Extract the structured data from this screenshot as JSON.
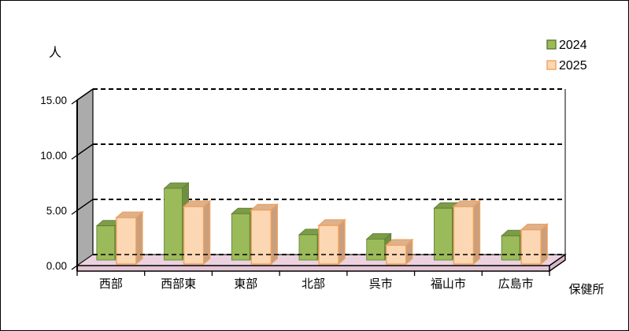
{
  "chart_data": {
    "type": "bar",
    "variant": "3d-clustered-column",
    "title": "",
    "ylabel": "人",
    "xlabel": "保健所",
    "ylim": [
      0,
      15
    ],
    "ytick_labels": [
      "0.00",
      "5.00",
      "10.00",
      "15.00"
    ],
    "ytick_values": [
      0,
      5,
      10,
      15
    ],
    "grid": "dashed-horizontal-on-back-wall",
    "legend_position": "top-right",
    "categories": [
      "西部",
      "西部東",
      "東部",
      "北部",
      "呉市",
      "福山市",
      "広島市"
    ],
    "series": [
      {
        "name": "2024",
        "values": [
          3.1,
          6.5,
          4.2,
          2.3,
          1.9,
          4.7,
          2.2
        ],
        "color": "#9BBA59",
        "top_color": "#7D9C48",
        "side_color": "#708E41",
        "border_color": "#5D7A33"
      },
      {
        "name": "2025",
        "values": [
          4.2,
          5.2,
          4.9,
          3.5,
          1.7,
          5.2,
          3.1
        ],
        "color": "#FCD7B3",
        "top_color": "#DBB28E",
        "side_color": "#C99F7D",
        "border_color": "#EFA160"
      }
    ],
    "colors": {
      "wall": "#ABABAB",
      "floor_top": "#ECD2DE",
      "floor_front": "#E4C4D4",
      "floor_side": "#D8B6C8",
      "gridline": "#000000",
      "text": "#000000"
    }
  }
}
